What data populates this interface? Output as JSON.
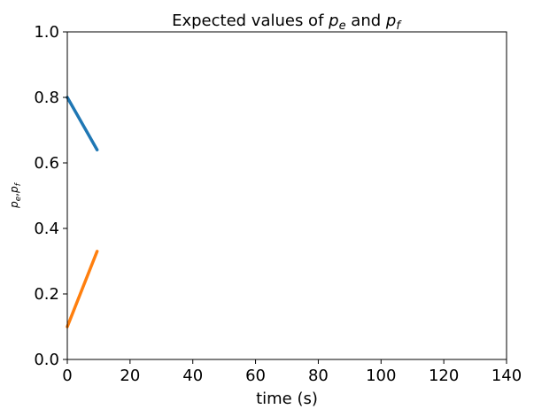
{
  "chart_data": {
    "type": "line",
    "title": {
      "prefix": "Expected values of ",
      "sym1": "p",
      "sub1": "e",
      "mid": " and ",
      "sym2": "p",
      "sub2": "f"
    },
    "xlabel": "time (s)",
    "ylabel": {
      "sym1": "p",
      "sub1": "e",
      "sep": ",",
      "sym2": "p",
      "sub2": "f"
    },
    "xlim": [
      0,
      140
    ],
    "ylim": [
      0.0,
      1.0
    ],
    "xticks": [
      0,
      20,
      40,
      60,
      80,
      100,
      120,
      140
    ],
    "yticks": [
      0.0,
      0.2,
      0.4,
      0.6,
      0.8,
      1.0
    ],
    "xtick_labels": [
      "0",
      "20",
      "40",
      "60",
      "80",
      "100",
      "120",
      "140"
    ],
    "ytick_labels": [
      "0.0",
      "0.2",
      "0.4",
      "0.6",
      "0.8",
      "1.0"
    ],
    "grid": false,
    "series": [
      {
        "color": "#1f77b4",
        "x": [
          0,
          9.5
        ],
        "y": [
          0.8,
          0.64
        ]
      },
      {
        "color": "#ff7f0e",
        "x": [
          0,
          9.5
        ],
        "y": [
          0.1,
          0.33
        ]
      }
    ]
  }
}
